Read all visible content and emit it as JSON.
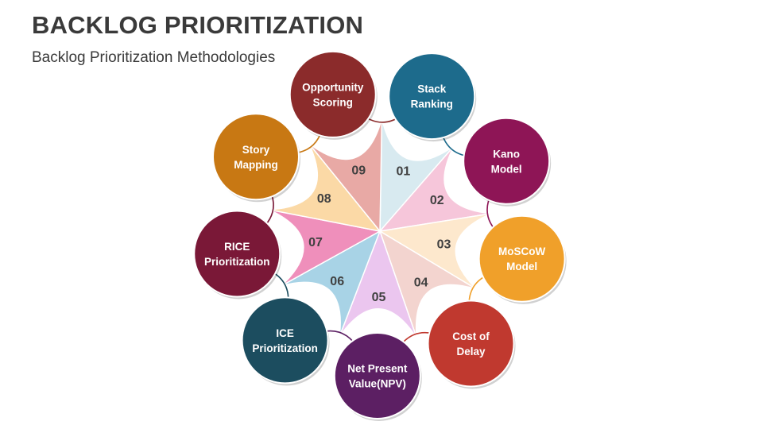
{
  "header": {
    "title": "BACKLOG PRIORITIZATION",
    "subtitle": "Backlog Prioritization Methodologies"
  },
  "colors": {
    "stack": "#1d6b8c",
    "kano": "#8e1556",
    "moscow": "#f0a02a",
    "cost": "#c0392f",
    "npv": "#5c1f63",
    "ice": "#1c4d5f",
    "rice": "#7a1837",
    "story": "#c87813",
    "opportunity": "#8b2b2b"
  },
  "methods": [
    {
      "number": "01",
      "lines": [
        "Stack",
        "Ranking"
      ],
      "circle_color": "#1d6b8c",
      "segment_color": "#d8eaf0"
    },
    {
      "number": "02",
      "lines": [
        "Kano",
        "Model"
      ],
      "circle_color": "#8e1556",
      "segment_color": "#f6c6da"
    },
    {
      "number": "03",
      "lines": [
        "MoSCoW",
        "Model"
      ],
      "circle_color": "#f0a02a",
      "segment_color": "#fde8cd"
    },
    {
      "number": "04",
      "lines": [
        "Cost of",
        "Delay"
      ],
      "circle_color": "#c0392f",
      "segment_color": "#f3d4cf"
    },
    {
      "number": "05",
      "lines": [
        "Net Present",
        "Value(NPV)"
      ],
      "circle_color": "#5c1f63",
      "segment_color": "#ebc6ef"
    },
    {
      "number": "06",
      "lines": [
        "ICE",
        "Prioritization"
      ],
      "circle_color": "#1c4d5f",
      "segment_color": "#a8d3e6"
    },
    {
      "number": "07",
      "lines": [
        "RICE",
        "Prioritization"
      ],
      "circle_color": "#7a1837",
      "segment_color": "#ef8fbb"
    },
    {
      "number": "08",
      "lines": [
        "Story",
        "Mapping"
      ],
      "circle_color": "#c87813",
      "segment_color": "#fbd9a6"
    },
    {
      "number": "09",
      "lines": [
        "Opportunity",
        "Scoring"
      ],
      "circle_color": "#8b2b2b",
      "segment_color": "#e8a9a5"
    }
  ]
}
